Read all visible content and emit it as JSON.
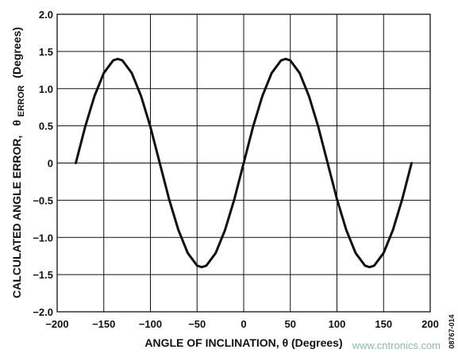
{
  "chart_data": {
    "type": "line",
    "title": "",
    "xlabel": "ANGLE OF INCLINATION, θ (Degrees)",
    "ylabel": {
      "prefix": "CALCULATED ANGLE ERROR,",
      "theta": "θ",
      "subscript": "ERROR",
      "suffix": "(Degrees)"
    },
    "xlim": [
      -200,
      200
    ],
    "ylim": [
      -2.0,
      2.0
    ],
    "x_ticks": [
      "−200",
      "−150",
      "−100",
      "−50",
      "0",
      "50",
      "100",
      "150",
      "200"
    ],
    "x_tick_values": [
      -200,
      -150,
      -100,
      -50,
      0,
      50,
      100,
      150,
      200
    ],
    "y_ticks": [
      "2.0",
      "1.5",
      "1.0",
      "0.5",
      "0",
      "−0.5",
      "−1.0",
      "−1.5",
      "−2.0"
    ],
    "y_tick_values": [
      2.0,
      1.5,
      1.0,
      0.5,
      0,
      -0.5,
      -1.0,
      -1.5,
      -2.0
    ],
    "grid": true,
    "line_color": "#111111",
    "series": [
      {
        "x": [
          -180,
          -170,
          -160,
          -150,
          -140,
          -135,
          -130,
          -120,
          -110,
          -100,
          -90,
          -80,
          -70,
          -60,
          -50,
          -45,
          -40,
          -30,
          -20,
          -10,
          0,
          10,
          20,
          30,
          40,
          45,
          50,
          60,
          70,
          80,
          90,
          100,
          110,
          120,
          130,
          135,
          140,
          150,
          160,
          170,
          180
        ],
        "y": [
          0,
          0.486,
          0.9,
          1.21,
          1.379,
          1.4,
          1.379,
          1.21,
          0.9,
          0.486,
          0,
          -0.486,
          -0.9,
          -1.21,
          -1.379,
          -1.4,
          -1.379,
          -1.21,
          -0.9,
          -0.486,
          0,
          0.486,
          0.9,
          1.21,
          1.379,
          1.4,
          1.379,
          1.21,
          0.9,
          0.486,
          0,
          -0.486,
          -0.9,
          -1.21,
          -1.379,
          -1.4,
          -1.379,
          -1.21,
          -0.9,
          -0.486,
          0
        ]
      }
    ]
  },
  "figure_code": "08767-014",
  "watermark": "www.cntronics.com"
}
